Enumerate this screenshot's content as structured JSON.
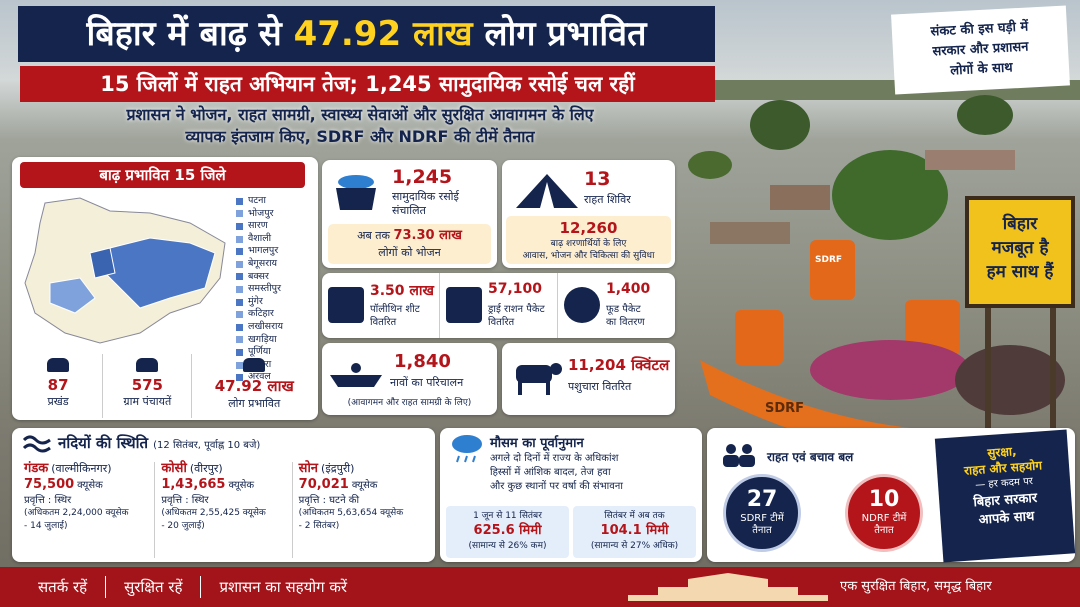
{
  "header": {
    "title_parts": [
      "बिहार में बाढ़ से ",
      "47.92 लाख",
      " लोग प्रभावित"
    ],
    "subtitle": "15 जिलों में राहत अभियान तेज; 1,245 सामुदायिक रसोई चल रहीं",
    "description": [
      "प्रशासन ने भोजन, राहत सामग्री, स्वास्थ्य सेवाओं और सुरक्षित आवागमन के लिए",
      "व्यापक इंतजाम किए, SDRF और NDRF की टीमें तैनात"
    ]
  },
  "note": [
    "संकट की इस घड़ी में",
    "सरकार और प्रशासन",
    "लोगों के साथ"
  ],
  "sign": [
    "बिहार",
    "मजबूत है",
    "हम साथ हैं"
  ],
  "photo": {
    "boat_label": "SDRF",
    "jacket_label": "SDRF"
  },
  "districts": {
    "title": "बाढ़ प्रभावित 15 जिले",
    "list": [
      "पटना",
      "भोजपुर",
      "सारण",
      "वैशाली",
      "भागलपुर",
      "बेगूसराय",
      "बक्सर",
      "समस्तीपुर",
      "मुंगेर",
      "कटिहार",
      "लखीसराय",
      "खगड़िया",
      "पूर्णिया",
      "मधेपुरा",
      "अरवल"
    ],
    "stats": [
      {
        "value": "87",
        "label": "प्रखंड"
      },
      {
        "value": "575",
        "label": "ग्राम पंचायतें"
      },
      {
        "value": "47.92 लाख",
        "label": "लोग प्रभावित"
      }
    ]
  },
  "relief": {
    "kitchen": {
      "value": "1,245",
      "label": [
        "सामुदायिक रसोई",
        "संचालित"
      ],
      "note_parts": [
        "अब तक ",
        "73.30 लाख"
      ],
      "note_line2": "लोगों को भोजन"
    },
    "camps": {
      "value": "13",
      "label": "राहत शिविर",
      "sub_value": "12,260",
      "sub_label": [
        "बाढ़ शरणार्थियों के लिए",
        "आवास, भोजन और चिकित्सा की सुविधा"
      ]
    },
    "items": [
      {
        "value": "3.50 लाख",
        "label": [
          "पॉलीथिन शीट",
          "वितरित"
        ]
      },
      {
        "value": "57,100",
        "label": [
          "ड्राई राशन पैकेट",
          "वितरित"
        ]
      },
      {
        "value": "1,400",
        "label": [
          "फूड पैकेट",
          "का वितरण"
        ]
      }
    ],
    "boats": {
      "value": "1,840",
      "label": "नावों का परिचालन",
      "note": "(आवागमन और राहत सामग्री के लिए)"
    },
    "fodder": {
      "value": "11,204 क्विंटल",
      "label": "पशुचारा वितरित"
    }
  },
  "rivers": {
    "title": "नदियों की स्थिति",
    "time": "(12 सितंबर, पूर्वाह्न 10 बजे)",
    "list": [
      {
        "name": "गंडक",
        "station": "(वाल्मीकिनगर)",
        "flow": "75,500",
        "unit": "क्यूसेक",
        "trend": "प्रवृत्ति : स्थिर",
        "max": [
          "(अधिकतम 2,24,000 क्यूसेक",
          "- 14 जुलाई)"
        ]
      },
      {
        "name": "कोसी",
        "station": "(वीरपुर)",
        "flow": "1,43,665",
        "unit": "क्यूसेक",
        "trend": "प्रवृत्ति : स्थिर",
        "max": [
          "(अधिकतम 2,55,425 क्यूसेक",
          "- 20 जुलाई)"
        ]
      },
      {
        "name": "सोन",
        "station": "(इंद्रपुरी)",
        "flow": "70,021",
        "unit": "क्यूसेक",
        "trend": "प्रवृत्ति : घटने की",
        "max": [
          "(अधिकतम 5,63,654 क्यूसेक",
          "- 2 सितंबर)"
        ]
      }
    ]
  },
  "weather": {
    "title": "मौसम का पूर्वानुमान",
    "forecast": [
      "अगले दो दिनों में राज्य के अधिकांश",
      "हिस्सों में आंशिक बादल, तेज हवा",
      "और कुछ स्थानों पर वर्षा की संभावना"
    ],
    "rain": [
      {
        "period": "1 जून से 11 सितंबर",
        "value": "625.6 मिमी",
        "note": "(सामान्य से 26% कम)"
      },
      {
        "period": "सितंबर में अब तक",
        "value": "104.1 मिमी",
        "note": "(सामान्य से 27% अधिक)"
      }
    ]
  },
  "forces": {
    "title": "राहत एवं बचाव बल",
    "teams": [
      {
        "value": "27",
        "label": [
          "SDRF टीमें",
          "तैनात"
        ]
      },
      {
        "value": "10",
        "label": [
          "NDRF टीमें",
          "तैनात"
        ]
      }
    ]
  },
  "slogan": {
    "line1": "सुरक्षा,",
    "line2": "राहत और सहयोग",
    "line3": "— हर कदम पर",
    "line4": [
      "बिहार सरकार",
      "आपके साथ"
    ]
  },
  "footer": {
    "items": [
      "सतर्क रहें",
      "सुरक्षित रहें",
      "प्रशासन का सहयोग करें"
    ],
    "tagline": "एक सुरक्षित बिहार, समृद्ध बिहार"
  }
}
